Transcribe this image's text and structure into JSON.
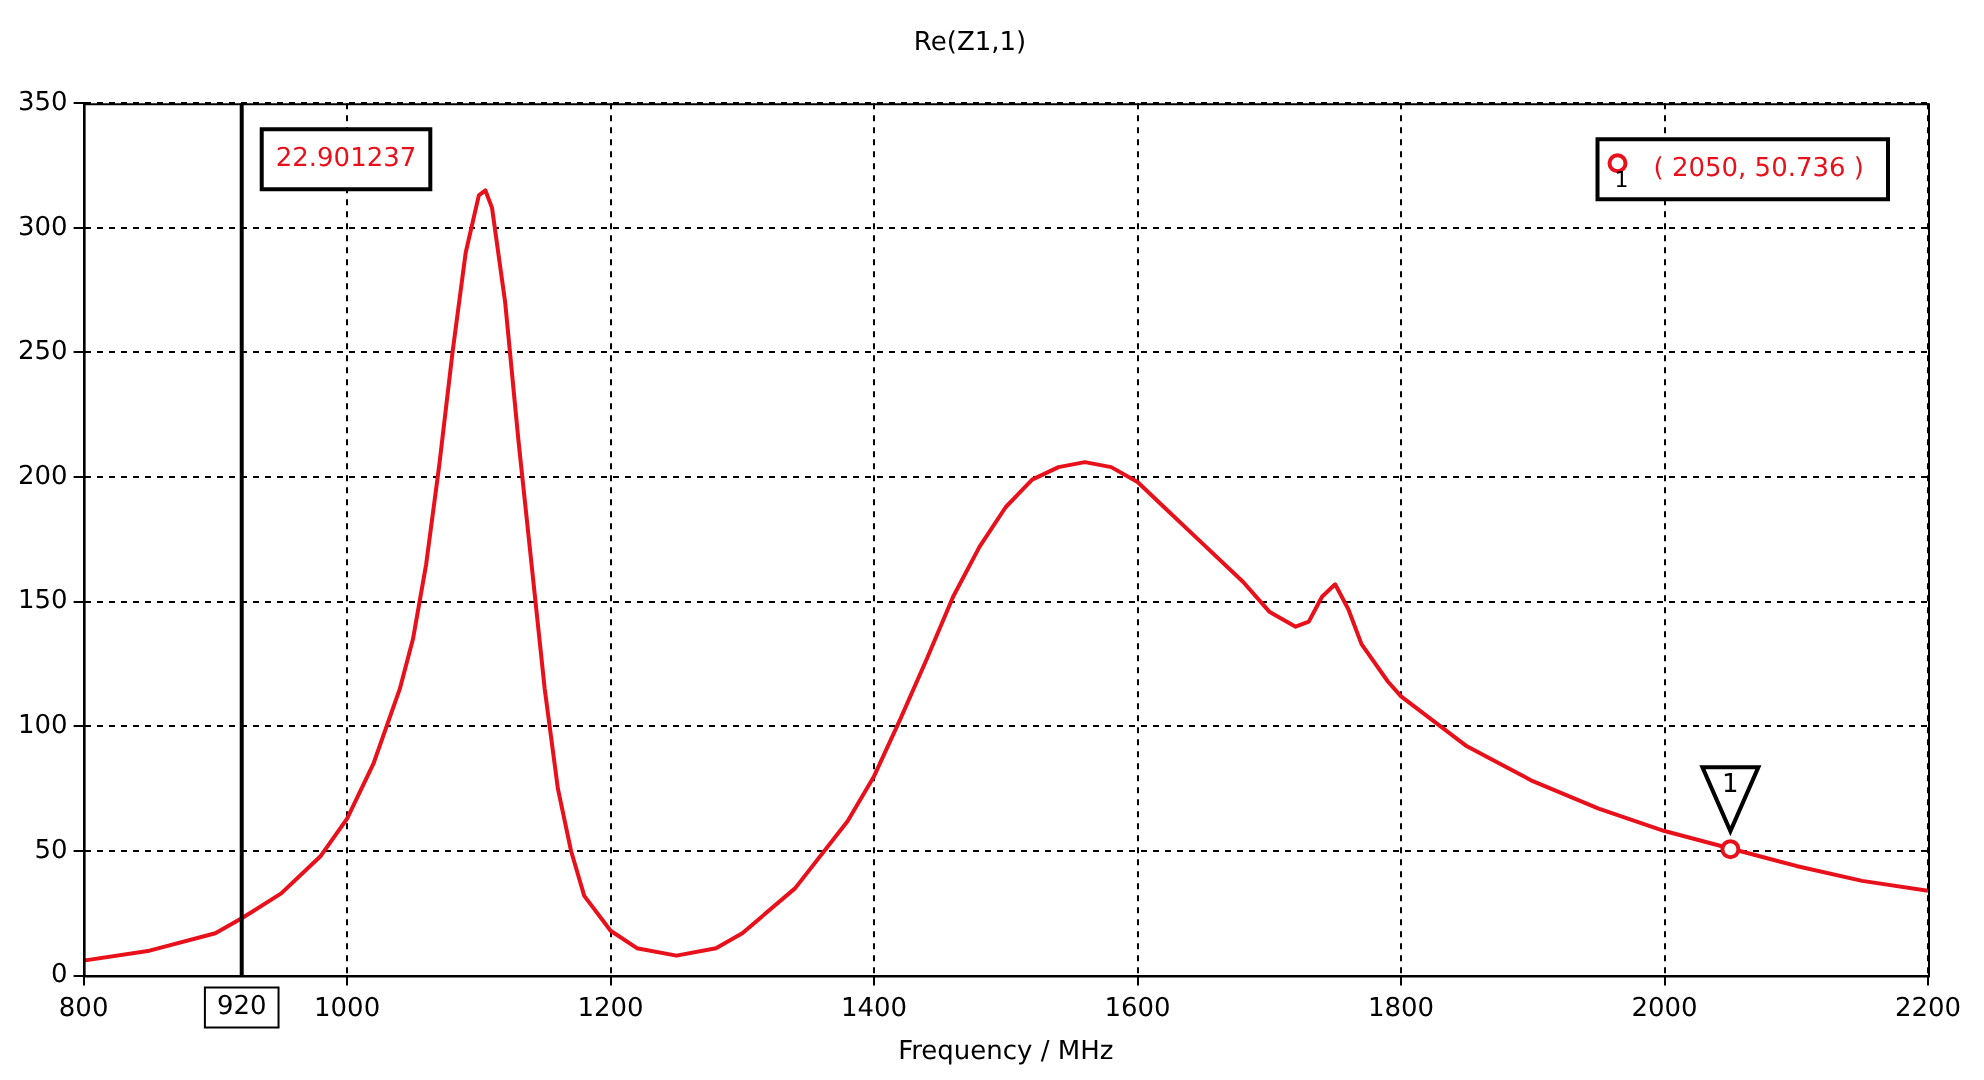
{
  "chart_data": {
    "type": "line",
    "title": "Re(Z1,1)",
    "xlabel": "Frequency / MHz",
    "x": [
      800,
      850,
      900,
      920,
      950,
      980,
      1000,
      1020,
      1040,
      1050,
      1060,
      1070,
      1080,
      1090,
      1100,
      1105,
      1110,
      1120,
      1130,
      1140,
      1150,
      1160,
      1170,
      1180,
      1200,
      1220,
      1250,
      1280,
      1300,
      1340,
      1380,
      1400,
      1420,
      1440,
      1460,
      1480,
      1500,
      1520,
      1540,
      1560,
      1580,
      1600,
      1620,
      1650,
      1680,
      1700,
      1720,
      1730,
      1740,
      1750,
      1760,
      1770,
      1790,
      1800,
      1850,
      1900,
      1950,
      2000,
      2050,
      2100,
      2150,
      2200
    ],
    "series": [
      {
        "color": "#e8101a",
        "values": [
          6,
          10,
          17,
          23,
          33,
          48,
          63,
          85,
          115,
          135,
          165,
          205,
          250,
          290,
          313,
          315,
          308,
          270,
          215,
          165,
          115,
          75,
          50,
          32,
          18,
          11,
          8,
          11,
          17,
          35,
          62,
          80,
          103,
          127,
          152,
          172,
          188,
          199,
          204,
          206,
          204,
          198,
          188,
          173,
          158,
          146,
          140,
          142,
          152,
          157,
          147,
          133,
          118,
          112,
          92,
          78,
          67,
          58,
          51,
          44,
          38,
          34
        ]
      },
      {
        "type": "scatter",
        "name": "1",
        "color": "#e8101a",
        "x": [
          2050
        ],
        "values": [
          50.736
        ],
        "marker": "circle"
      }
    ],
    "xlim": [
      800,
      2200
    ],
    "xticks": [
      800,
      1000,
      1200,
      1400,
      1600,
      1800,
      2000,
      2200
    ],
    "ylim": [
      0,
      350
    ],
    "yticks": [
      0,
      50,
      100,
      150,
      200,
      250,
      300,
      350
    ],
    "grid": true,
    "line_style": "solid",
    "ref_lines": [
      {
        "axis": "x",
        "value": 920,
        "label": "920",
        "color": "#000000"
      }
    ],
    "annotations": [
      "22.901237",
      "( 2050, 50.736 )"
    ]
  }
}
